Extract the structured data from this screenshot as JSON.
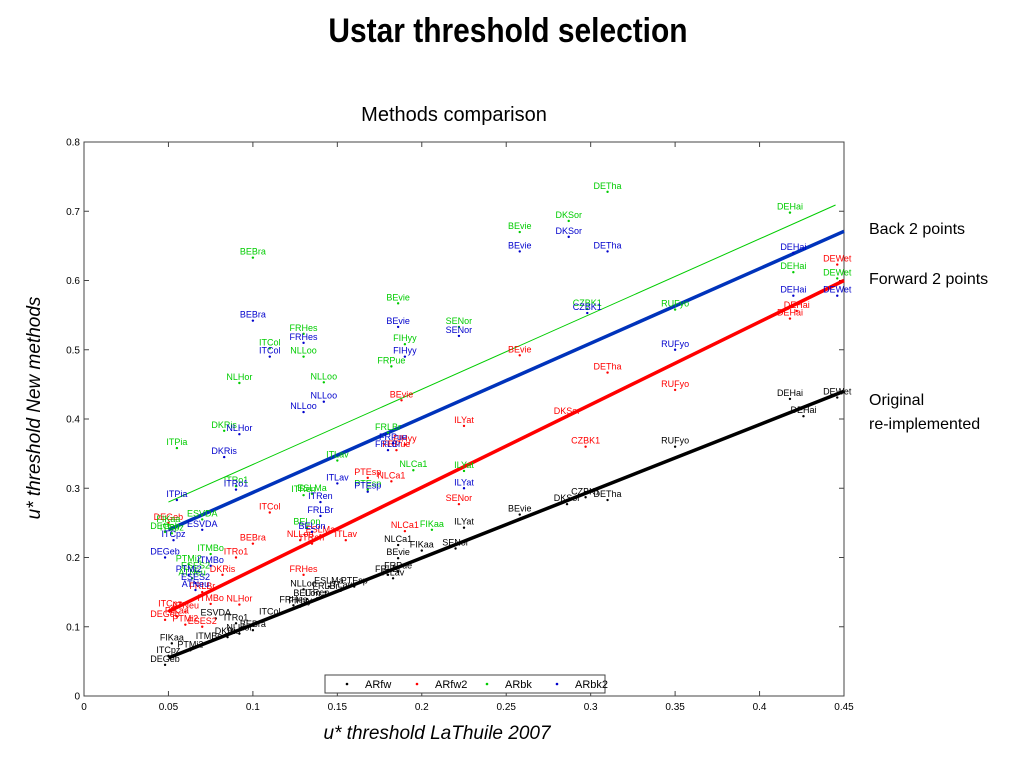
{
  "slide_title": "Ustar threshold selection",
  "annotations": {
    "back": "Back 2 points",
    "forward": "Forward 2 points",
    "original_line1": "Original",
    "original_line2": "re-implemented"
  },
  "chart_data": {
    "type": "scatter",
    "title": "Methods comparison",
    "xlabel": "u* threshold LaThuile 2007",
    "ylabel": "u* threshold New methods",
    "xlim": [
      0,
      0.45
    ],
    "ylim": [
      0,
      0.8
    ],
    "x_ticks": [
      "0",
      "0.05",
      "0.1",
      "0.15",
      "0.2",
      "0.25",
      "0.3",
      "0.35",
      "0.4",
      "0.45"
    ],
    "y_ticks": [
      "0",
      "0.1",
      "0.2",
      "0.3",
      "0.4",
      "0.5",
      "0.6",
      "0.7",
      "0.8"
    ],
    "grid": false,
    "legend_position": "bottom-center",
    "series": [
      {
        "name": "ARfw",
        "color": "#000000",
        "points": [
          {
            "label": "DEHai",
            "x": 0.418,
            "y": 0.429
          },
          {
            "label": "DEWet",
            "x": 0.446,
            "y": 0.431
          },
          {
            "label": "DEHai",
            "x": 0.426,
            "y": 0.404
          },
          {
            "label": "RUFyo",
            "x": 0.35,
            "y": 0.36
          },
          {
            "label": "CZBK1",
            "x": 0.297,
            "y": 0.287
          },
          {
            "label": "DETha",
            "x": 0.31,
            "y": 0.283
          },
          {
            "label": "DKSor",
            "x": 0.286,
            "y": 0.277
          },
          {
            "label": "BEvie",
            "x": 0.258,
            "y": 0.262
          },
          {
            "label": "ILYat",
            "x": 0.225,
            "y": 0.243
          },
          {
            "label": "SENor",
            "x": 0.22,
            "y": 0.213
          },
          {
            "label": "FIKaa",
            "x": 0.2,
            "y": 0.21
          },
          {
            "label": "NLCa1",
            "x": 0.186,
            "y": 0.218
          },
          {
            "label": "BEvie",
            "x": 0.186,
            "y": 0.199
          },
          {
            "label": "FRPue",
            "x": 0.186,
            "y": 0.18
          },
          {
            "label": "FRLBr",
            "x": 0.18,
            "y": 0.175
          },
          {
            "label": "ITLav",
            "x": 0.183,
            "y": 0.17
          },
          {
            "label": "PTEsp",
            "x": 0.16,
            "y": 0.158
          },
          {
            "label": "ESLMa",
            "x": 0.145,
            "y": 0.158
          },
          {
            "label": "NLLoo",
            "x": 0.13,
            "y": 0.154
          },
          {
            "label": "FRLBr",
            "x": 0.143,
            "y": 0.15
          },
          {
            "label": "ITLav",
            "x": 0.152,
            "y": 0.152
          },
          {
            "label": "BELon",
            "x": 0.132,
            "y": 0.14
          },
          {
            "label": "ITRen",
            "x": 0.138,
            "y": 0.141
          },
          {
            "label": "FRHes",
            "x": 0.124,
            "y": 0.131
          },
          {
            "label": "FIHyy",
            "x": 0.128,
            "y": 0.129
          },
          {
            "label": "ITCol",
            "x": 0.11,
            "y": 0.113
          },
          {
            "label": "ITRo1",
            "x": 0.09,
            "y": 0.105
          },
          {
            "label": "BEBra",
            "x": 0.1,
            "y": 0.095
          },
          {
            "label": "NLHor",
            "x": 0.092,
            "y": 0.09
          },
          {
            "label": "DKRis",
            "x": 0.085,
            "y": 0.085
          },
          {
            "label": "ESVDA",
            "x": 0.078,
            "y": 0.112
          },
          {
            "label": "ITMBo",
            "x": 0.074,
            "y": 0.078
          },
          {
            "label": "FIKaa",
            "x": 0.052,
            "y": 0.076
          },
          {
            "label": "PTMi2",
            "x": 0.063,
            "y": 0.066
          },
          {
            "label": "DEGeb",
            "x": 0.048,
            "y": 0.045
          },
          {
            "label": "ITCpz",
            "x": 0.05,
            "y": 0.058
          }
        ]
      },
      {
        "name": "ARfw2",
        "color": "#ff0000",
        "points": [
          {
            "label": "DEWet",
            "x": 0.446,
            "y": 0.623
          },
          {
            "label": "DEHai",
            "x": 0.422,
            "y": 0.556
          },
          {
            "label": "DEHai",
            "x": 0.418,
            "y": 0.545
          },
          {
            "label": "RUFyo",
            "x": 0.35,
            "y": 0.442
          },
          {
            "label": "DETha",
            "x": 0.31,
            "y": 0.467
          },
          {
            "label": "BEvie",
            "x": 0.258,
            "y": 0.492
          },
          {
            "label": "DKSor",
            "x": 0.286,
            "y": 0.403
          },
          {
            "label": "CZBK1",
            "x": 0.297,
            "y": 0.36
          },
          {
            "label": "ILYat",
            "x": 0.225,
            "y": 0.39
          },
          {
            "label": "BEvie",
            "x": 0.188,
            "y": 0.427
          },
          {
            "label": "FIHyy",
            "x": 0.19,
            "y": 0.363
          },
          {
            "label": "FRPue",
            "x": 0.185,
            "y": 0.355
          },
          {
            "label": "PTEsp",
            "x": 0.168,
            "y": 0.315
          },
          {
            "label": "NLCa1",
            "x": 0.182,
            "y": 0.31
          },
          {
            "label": "SENor",
            "x": 0.222,
            "y": 0.277
          },
          {
            "label": "NLCa1",
            "x": 0.19,
            "y": 0.238
          },
          {
            "label": "ESLMa",
            "x": 0.14,
            "y": 0.232
          },
          {
            "label": "ITLav",
            "x": 0.155,
            "y": 0.225
          },
          {
            "label": "NLLoo",
            "x": 0.128,
            "y": 0.225
          },
          {
            "label": "ITRen",
            "x": 0.135,
            "y": 0.22
          },
          {
            "label": "FRHes",
            "x": 0.13,
            "y": 0.175
          },
          {
            "label": "ITCol",
            "x": 0.11,
            "y": 0.265
          },
          {
            "label": "BEBra",
            "x": 0.1,
            "y": 0.22
          },
          {
            "label": "ITRo1",
            "x": 0.09,
            "y": 0.2
          },
          {
            "label": "DKRis",
            "x": 0.082,
            "y": 0.175
          },
          {
            "label": "NLHor",
            "x": 0.092,
            "y": 0.132
          },
          {
            "label": "ITMBo",
            "x": 0.075,
            "y": 0.133
          },
          {
            "label": "FRLBr",
            "x": 0.07,
            "y": 0.15
          },
          {
            "label": "ITCpz",
            "x": 0.051,
            "y": 0.125
          },
          {
            "label": "ATNeu",
            "x": 0.06,
            "y": 0.122
          },
          {
            "label": "FIKaa",
            "x": 0.055,
            "y": 0.115
          },
          {
            "label": "DEGeb",
            "x": 0.048,
            "y": 0.11
          },
          {
            "label": "PTMi2",
            "x": 0.06,
            "y": 0.103
          },
          {
            "label": "ESES2",
            "x": 0.07,
            "y": 0.1
          },
          {
            "label": "DEGeb",
            "x": 0.05,
            "y": 0.25
          }
        ]
      },
      {
        "name": "ARbk",
        "color": "#00cc00",
        "points": [
          {
            "label": "DETha",
            "x": 0.31,
            "y": 0.728
          },
          {
            "label": "DEHai",
            "x": 0.418,
            "y": 0.698
          },
          {
            "label": "DKSor",
            "x": 0.287,
            "y": 0.686
          },
          {
            "label": "BEvie",
            "x": 0.258,
            "y": 0.67
          },
          {
            "label": "DEHai",
            "x": 0.42,
            "y": 0.612
          },
          {
            "label": "DEWet",
            "x": 0.446,
            "y": 0.603
          },
          {
            "label": "BEBra",
            "x": 0.1,
            "y": 0.633
          },
          {
            "label": "BEvie",
            "x": 0.186,
            "y": 0.567
          },
          {
            "label": "CZBK1",
            "x": 0.298,
            "y": 0.559
          },
          {
            "label": "RUFyo",
            "x": 0.35,
            "y": 0.558
          },
          {
            "label": "FRHes",
            "x": 0.13,
            "y": 0.523
          },
          {
            "label": "SENor",
            "x": 0.222,
            "y": 0.533
          },
          {
            "label": "ITCol",
            "x": 0.11,
            "y": 0.502
          },
          {
            "label": "NLLoo",
            "x": 0.13,
            "y": 0.49
          },
          {
            "label": "FIHyy",
            "x": 0.19,
            "y": 0.508
          },
          {
            "label": "FRPue",
            "x": 0.182,
            "y": 0.476
          },
          {
            "label": "NLHor",
            "x": 0.092,
            "y": 0.452
          },
          {
            "label": "NLLoo",
            "x": 0.142,
            "y": 0.453
          },
          {
            "label": "DKRis",
            "x": 0.083,
            "y": 0.383
          },
          {
            "label": "FRLBr",
            "x": 0.18,
            "y": 0.38
          },
          {
            "label": "ITPia",
            "x": 0.055,
            "y": 0.358
          },
          {
            "label": "ITLav",
            "x": 0.15,
            "y": 0.34
          },
          {
            "label": "NLCa1",
            "x": 0.195,
            "y": 0.326
          },
          {
            "label": "ILYat",
            "x": 0.225,
            "y": 0.325
          },
          {
            "label": "ITRo1",
            "x": 0.09,
            "y": 0.303
          },
          {
            "label": "ESLMa",
            "x": 0.135,
            "y": 0.292
          },
          {
            "label": "ITRen",
            "x": 0.13,
            "y": 0.29
          },
          {
            "label": "PTEsp",
            "x": 0.168,
            "y": 0.298
          },
          {
            "label": "FIKaa",
            "x": 0.206,
            "y": 0.24
          },
          {
            "label": "BELon",
            "x": 0.132,
            "y": 0.243
          },
          {
            "label": "ESVDA",
            "x": 0.07,
            "y": 0.255
          },
          {
            "label": "FIKaa",
            "x": 0.05,
            "y": 0.247
          },
          {
            "label": "DEGeb",
            "x": 0.048,
            "y": 0.237
          },
          {
            "label": "ITCpz",
            "x": 0.052,
            "y": 0.235
          },
          {
            "label": "ITMBo",
            "x": 0.075,
            "y": 0.205
          },
          {
            "label": "PTMi2",
            "x": 0.062,
            "y": 0.19
          },
          {
            "label": "ESES2",
            "x": 0.066,
            "y": 0.18
          },
          {
            "label": "ATNeu",
            "x": 0.064,
            "y": 0.17
          }
        ]
      },
      {
        "name": "ARbk2",
        "color": "#0000cc",
        "points": [
          {
            "label": "DKSor",
            "x": 0.287,
            "y": 0.663
          },
          {
            "label": "BEvie",
            "x": 0.258,
            "y": 0.642
          },
          {
            "label": "DETha",
            "x": 0.31,
            "y": 0.642
          },
          {
            "label": "DEHai",
            "x": 0.42,
            "y": 0.64
          },
          {
            "label": "DEHai",
            "x": 0.42,
            "y": 0.578
          },
          {
            "label": "DEWet",
            "x": 0.446,
            "y": 0.578
          },
          {
            "label": "CZBK1",
            "x": 0.298,
            "y": 0.553
          },
          {
            "label": "BEBra",
            "x": 0.1,
            "y": 0.542
          },
          {
            "label": "BEvie",
            "x": 0.186,
            "y": 0.533
          },
          {
            "label": "FRHes",
            "x": 0.13,
            "y": 0.51
          },
          {
            "label": "SENor",
            "x": 0.222,
            "y": 0.52
          },
          {
            "label": "RUFyo",
            "x": 0.35,
            "y": 0.5
          },
          {
            "label": "ITCol",
            "x": 0.11,
            "y": 0.49
          },
          {
            "label": "FIHyy",
            "x": 0.19,
            "y": 0.49
          },
          {
            "label": "NLLoo",
            "x": 0.142,
            "y": 0.425
          },
          {
            "label": "NLLoo",
            "x": 0.13,
            "y": 0.41
          },
          {
            "label": "NLHor",
            "x": 0.092,
            "y": 0.378
          },
          {
            "label": "ITPia",
            "x": 0.055,
            "y": 0.283
          },
          {
            "label": "DKRis",
            "x": 0.083,
            "y": 0.345
          },
          {
            "label": "FRPue",
            "x": 0.183,
            "y": 0.365
          },
          {
            "label": "FRLBr",
            "x": 0.18,
            "y": 0.355
          },
          {
            "label": "ITLav",
            "x": 0.15,
            "y": 0.307
          },
          {
            "label": "ILYat",
            "x": 0.225,
            "y": 0.3
          },
          {
            "label": "ITRo1",
            "x": 0.09,
            "y": 0.298
          },
          {
            "label": "ITRen",
            "x": 0.14,
            "y": 0.28
          },
          {
            "label": "FRLBr",
            "x": 0.14,
            "y": 0.26
          },
          {
            "label": "PTEsp",
            "x": 0.168,
            "y": 0.295
          },
          {
            "label": "BELon",
            "x": 0.135,
            "y": 0.237
          },
          {
            "label": "ESVDA",
            "x": 0.07,
            "y": 0.24
          },
          {
            "label": "DEGeb",
            "x": 0.048,
            "y": 0.2
          },
          {
            "label": "ITCpz",
            "x": 0.053,
            "y": 0.225
          },
          {
            "label": "ITMBo",
            "x": 0.075,
            "y": 0.188
          },
          {
            "label": "PTMi2",
            "x": 0.062,
            "y": 0.175
          },
          {
            "label": "ESES2",
            "x": 0.066,
            "y": 0.163
          },
          {
            "label": "ATNeu",
            "x": 0.066,
            "y": 0.153
          }
        ]
      }
    ],
    "fit_lines": [
      {
        "color": "#00cc00",
        "width": "thin",
        "from": [
          0.05,
          0.28
        ],
        "to": [
          0.445,
          0.709
        ]
      },
      {
        "color": "#0033bb",
        "width": "thick",
        "from": [
          0.05,
          0.24
        ],
        "to": [
          0.45,
          0.671
        ]
      },
      {
        "color": "#ff0000",
        "width": "thick",
        "from": [
          0.05,
          0.122
        ],
        "to": [
          0.45,
          0.6
        ]
      },
      {
        "color": "#000000",
        "width": "thick",
        "from": [
          0.05,
          0.055
        ],
        "to": [
          0.45,
          0.44
        ]
      }
    ]
  }
}
